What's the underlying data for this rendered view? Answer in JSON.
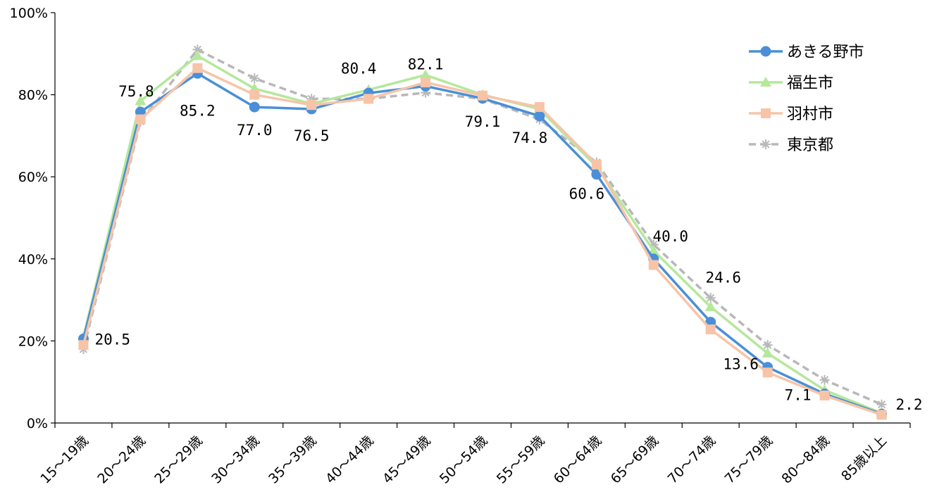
{
  "chart_data": {
    "type": "line",
    "title": "",
    "xlabel": "",
    "ylabel": "",
    "ylim": [
      0,
      100
    ],
    "yticks": [
      "0%",
      "20%",
      "40%",
      "60%",
      "80%",
      "100%"
    ],
    "grid": false,
    "legend_position": "top-right",
    "categories": [
      "15～19歳",
      "20～24歳",
      "25～29歳",
      "30～34歳",
      "35～39歳",
      "40～44歳",
      "45～49歳",
      "50～54歳",
      "55～59歳",
      "60～64歳",
      "65～69歳",
      "70～74歳",
      "75～79歳",
      "80～84歳",
      "85歳以上"
    ],
    "series": [
      {
        "name": "あきる野市",
        "color": "#4a8fd8",
        "marker": "circle",
        "dash": false,
        "values": [
          20.5,
          75.8,
          85.2,
          77.0,
          76.5,
          80.4,
          82.1,
          79.1,
          74.8,
          60.6,
          40.0,
          24.6,
          13.6,
          7.1,
          2.2
        ]
      },
      {
        "name": "福生市",
        "color": "#b4e89b",
        "marker": "triangle",
        "dash": false,
        "values": [
          21.0,
          78.5,
          89.5,
          81.5,
          77.8,
          81.2,
          84.8,
          80.0,
          76.5,
          62.5,
          42.0,
          28.3,
          17.0,
          8.0,
          2.4
        ]
      },
      {
        "name": "羽村市",
        "color": "#f7c4a8",
        "marker": "square",
        "dash": false,
        "values": [
          19.0,
          74.0,
          86.5,
          80.0,
          77.5,
          79.0,
          83.0,
          79.8,
          77.0,
          63.0,
          38.5,
          22.8,
          12.3,
          6.7,
          2.0
        ]
      },
      {
        "name": "東京都",
        "color": "#b8b8b8",
        "marker": "asterisk",
        "dash": true,
        "values": [
          18.0,
          73.5,
          91.0,
          84.0,
          79.0,
          79.0,
          80.5,
          79.0,
          74.0,
          63.5,
          43.5,
          30.5,
          19.0,
          10.5,
          4.5
        ]
      }
    ],
    "data_labels": [
      {
        "series": 0,
        "index": 0,
        "text": "20.5"
      },
      {
        "series": 0,
        "index": 1,
        "text": "75.8"
      },
      {
        "series": 0,
        "index": 2,
        "text": "85.2"
      },
      {
        "series": 0,
        "index": 3,
        "text": "77.0"
      },
      {
        "series": 0,
        "index": 4,
        "text": "76.5"
      },
      {
        "series": 0,
        "index": 5,
        "text": "80.4"
      },
      {
        "series": 0,
        "index": 6,
        "text": "82.1"
      },
      {
        "series": 0,
        "index": 7,
        "text": "79.1"
      },
      {
        "series": 0,
        "index": 8,
        "text": "74.8"
      },
      {
        "series": 0,
        "index": 9,
        "text": "60.6"
      },
      {
        "series": 0,
        "index": 10,
        "text": "40.0"
      },
      {
        "series": 0,
        "index": 11,
        "text": "24.6"
      },
      {
        "series": 0,
        "index": 12,
        "text": "13.6"
      },
      {
        "series": 0,
        "index": 13,
        "text": "7.1"
      },
      {
        "series": 0,
        "index": 14,
        "text": "2.2"
      }
    ]
  }
}
